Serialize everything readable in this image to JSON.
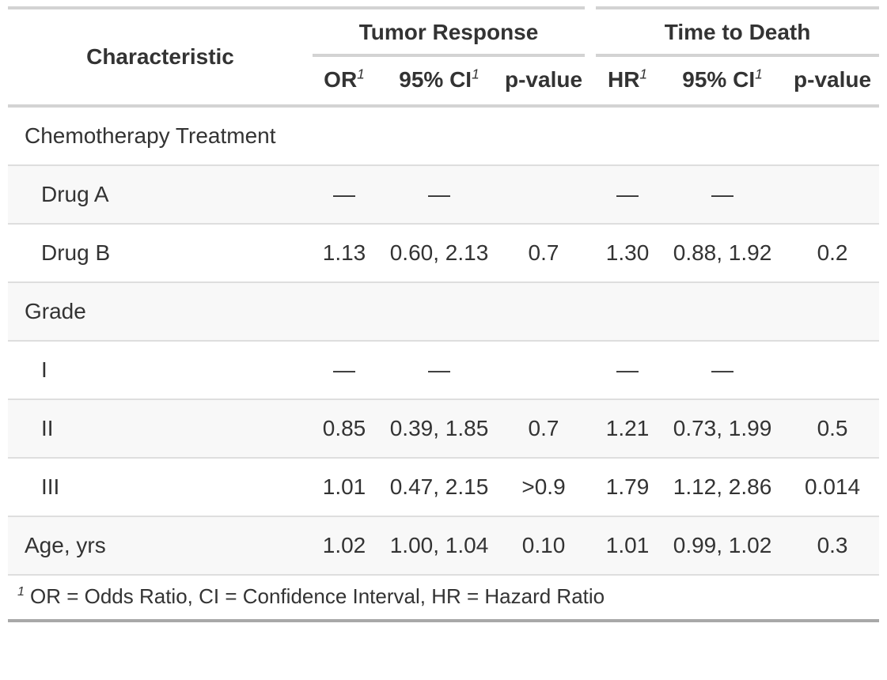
{
  "colors": {
    "text": "#333333",
    "border_light": "#d3d3d3",
    "row_border": "#dedede",
    "bottom_border": "#a8a8a8",
    "stripe": "#f8f8f8"
  },
  "table": {
    "header": {
      "characteristic": "Characteristic",
      "spanners": [
        {
          "label": "Tumor Response"
        },
        {
          "label": "Time to Death"
        }
      ],
      "columns": [
        {
          "label": "OR",
          "sup": "1"
        },
        {
          "label": "95% CI",
          "sup": "1"
        },
        {
          "label": "p-value",
          "sup": ""
        },
        {
          "label": "HR",
          "sup": "1"
        },
        {
          "label": "95% CI",
          "sup": "1"
        },
        {
          "label": "p-value",
          "sup": ""
        }
      ]
    },
    "rows": [
      {
        "label": "Chemotherapy Treatment",
        "indent": false,
        "or": "",
        "or_ci": "",
        "or_p": "",
        "hr": "",
        "hr_ci": "",
        "hr_p": ""
      },
      {
        "label": "Drug A",
        "indent": true,
        "or": "—",
        "or_ci": "—",
        "or_p": "",
        "hr": "—",
        "hr_ci": "—",
        "hr_p": ""
      },
      {
        "label": "Drug B",
        "indent": true,
        "or": "1.13",
        "or_ci": "0.60, 2.13",
        "or_p": "0.7",
        "hr": "1.30",
        "hr_ci": "0.88, 1.92",
        "hr_p": "0.2"
      },
      {
        "label": "Grade",
        "indent": false,
        "or": "",
        "or_ci": "",
        "or_p": "",
        "hr": "",
        "hr_ci": "",
        "hr_p": ""
      },
      {
        "label": "I",
        "indent": true,
        "or": "—",
        "or_ci": "—",
        "or_p": "",
        "hr": "—",
        "hr_ci": "—",
        "hr_p": ""
      },
      {
        "label": "II",
        "indent": true,
        "or": "0.85",
        "or_ci": "0.39, 1.85",
        "or_p": "0.7",
        "hr": "1.21",
        "hr_ci": "0.73, 1.99",
        "hr_p": "0.5"
      },
      {
        "label": "III",
        "indent": true,
        "or": "1.01",
        "or_ci": "0.47, 2.15",
        "or_p": ">0.9",
        "hr": "1.79",
        "hr_ci": "1.12, 2.86",
        "hr_p": "0.014"
      },
      {
        "label": "Age, yrs",
        "indent": false,
        "or": "1.02",
        "or_ci": "1.00, 1.04",
        "or_p": "0.10",
        "hr": "1.01",
        "hr_ci": "0.99, 1.02",
        "hr_p": "0.3"
      }
    ],
    "footnote": {
      "marker": "1",
      "text": "OR = Odds Ratio, CI = Confidence Interval, HR = Hazard Ratio"
    }
  }
}
